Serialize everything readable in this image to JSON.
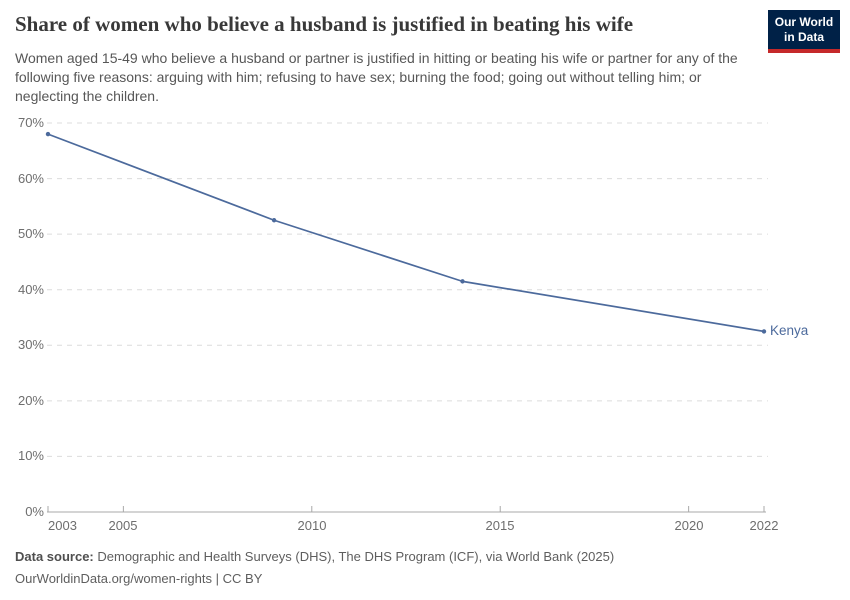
{
  "header": {
    "title": "Share of women who believe a husband is justified in beating his wife",
    "subtitle": "Women aged 15-49 who believe a husband or partner is justified in hitting or beating his wife or partner for any of the following five reasons: arguing with him; refusing to have sex; burning the food; going out without telling him; or neglecting the children.",
    "logo": {
      "line1": "Our World",
      "line2": "in Data"
    }
  },
  "chart_data": {
    "type": "line",
    "title": "Share of women who believe a husband is justified in beating his wife",
    "x": [
      2003,
      2009,
      2014,
      2022
    ],
    "series": [
      {
        "name": "Kenya",
        "values": [
          68,
          52.5,
          41.5,
          32.5
        ],
        "color": "#4C6A9C"
      }
    ],
    "xlabel": "",
    "ylabel": "",
    "xlim": [
      2003,
      2022
    ],
    "ylim": [
      0,
      70
    ],
    "x_ticks": [
      {
        "value": 2003,
        "label": "2003"
      },
      {
        "value": 2005,
        "label": "2005"
      },
      {
        "value": 2010,
        "label": "2010"
      },
      {
        "value": 2015,
        "label": "2015"
      },
      {
        "value": 2020,
        "label": "2020"
      },
      {
        "value": 2022,
        "label": "2022"
      }
    ],
    "y_ticks": [
      {
        "value": 0,
        "label": "0%"
      },
      {
        "value": 10,
        "label": "10%"
      },
      {
        "value": 20,
        "label": "20%"
      },
      {
        "value": 30,
        "label": "30%"
      },
      {
        "value": 40,
        "label": "40%"
      },
      {
        "value": 50,
        "label": "50%"
      },
      {
        "value": 60,
        "label": "60%"
      },
      {
        "value": 70,
        "label": "70%"
      }
    ],
    "grid": "horizontal-dashed",
    "legend": "end-of-line-label",
    "end_label": "Kenya"
  },
  "colors": {
    "line": "#4C6A9C",
    "grid": "#dcdcdc",
    "axis": "#a8a8a8",
    "logo_bg": "#002147",
    "logo_stripe": "#C5292A"
  },
  "footer": {
    "data_source_label": "Data source:",
    "data_source_text": "Demographic and Health Surveys (DHS), The DHS Program (ICF), via World Bank (2025)",
    "citation_url": "OurWorldinData.org/women-rights",
    "citation_sep": "|",
    "citation_license": "CC BY"
  }
}
